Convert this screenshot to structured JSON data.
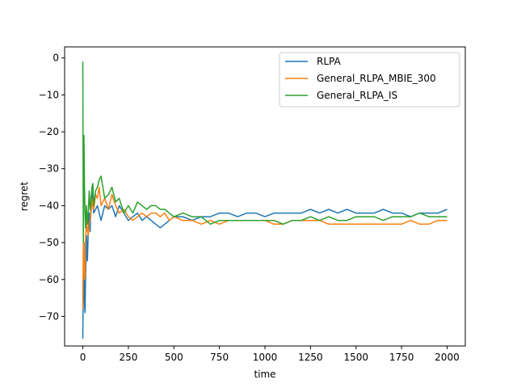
{
  "chart_data": {
    "type": "line",
    "title": "",
    "xlabel": "time",
    "ylabel": "regret",
    "xlim": [
      -100,
      2100
    ],
    "ylim": [
      -78,
      3
    ],
    "xticks": [
      0,
      250,
      500,
      750,
      1000,
      1250,
      1500,
      1750,
      2000
    ],
    "yticks": [
      0,
      -10,
      -20,
      -30,
      -40,
      -50,
      -60,
      -70
    ],
    "xtick_labels": [
      "0",
      "250",
      "500",
      "750",
      "1000",
      "1250",
      "1500",
      "1750",
      "2000"
    ],
    "ytick_labels": [
      "0",
      "−10",
      "−20",
      "−30",
      "−40",
      "−50",
      "−60",
      "−70"
    ],
    "grid": false,
    "legend_position": "top-right",
    "series": [
      {
        "name": "RLPA",
        "color": "#1f77b4",
        "x": [
          0,
          3,
          6,
          9,
          12,
          15,
          20,
          25,
          30,
          35,
          40,
          45,
          50,
          55,
          60,
          70,
          80,
          90,
          100,
          120,
          140,
          160,
          180,
          200,
          225,
          250,
          275,
          300,
          325,
          350,
          375,
          400,
          425,
          450,
          475,
          500,
          550,
          600,
          650,
          700,
          750,
          800,
          850,
          900,
          950,
          1000,
          1050,
          1100,
          1150,
          1200,
          1250,
          1300,
          1350,
          1400,
          1450,
          1500,
          1550,
          1600,
          1650,
          1700,
          1750,
          1800,
          1850,
          1900,
          1950,
          2000
        ],
        "y": [
          -76,
          -60,
          -50,
          -67,
          -69,
          -60,
          -48,
          -55,
          -47,
          -42,
          -47,
          -38,
          -36,
          -40,
          -42,
          -41,
          -40,
          -42,
          -44,
          -40,
          -41,
          -40,
          -43,
          -40,
          -42,
          -44,
          -43,
          -42,
          -44,
          -43,
          -44,
          -45,
          -46,
          -45,
          -44,
          -43,
          -43,
          -44,
          -43,
          -43,
          -42,
          -42,
          -43,
          -42,
          -42,
          -43,
          -42,
          -42,
          -42,
          -42,
          -41,
          -42,
          -41,
          -42,
          -41,
          -42,
          -42,
          -42,
          -41,
          -42,
          -42,
          -43,
          -42,
          -42,
          -42,
          -41
        ]
      },
      {
        "name": "General_RLPA_MBIE_300",
        "color": "#ff7f0e",
        "x": [
          0,
          3,
          6,
          9,
          12,
          15,
          20,
          25,
          30,
          35,
          40,
          45,
          50,
          55,
          60,
          70,
          80,
          90,
          100,
          120,
          140,
          160,
          180,
          200,
          225,
          250,
          275,
          300,
          325,
          350,
          375,
          400,
          425,
          450,
          475,
          500,
          550,
          600,
          650,
          700,
          750,
          800,
          850,
          900,
          950,
          1000,
          1050,
          1100,
          1150,
          1200,
          1250,
          1300,
          1350,
          1400,
          1450,
          1500,
          1550,
          1600,
          1650,
          1700,
          1750,
          1800,
          1850,
          1900,
          1950,
          2000
        ],
        "y": [
          -68,
          -50,
          -55,
          -60,
          -59,
          -49,
          -44,
          -47,
          -48,
          -45,
          -44,
          -42,
          -38,
          -40,
          -41,
          -37,
          -38,
          -35,
          -40,
          -38,
          -41,
          -37,
          -40,
          -42,
          -41,
          -43,
          -44,
          -43,
          -42,
          -43,
          -42,
          -42,
          -43,
          -42,
          -44,
          -43,
          -44,
          -44,
          -45,
          -44,
          -45,
          -44,
          -44,
          -44,
          -44,
          -44,
          -45,
          -45,
          -44,
          -44,
          -44,
          -44,
          -45,
          -45,
          -45,
          -45,
          -45,
          -45,
          -45,
          -45,
          -45,
          -44,
          -45,
          -45,
          -44,
          -44
        ]
      },
      {
        "name": "General_RLPA_IS",
        "color": "#2ca02c",
        "x": [
          0,
          3,
          6,
          9,
          12,
          15,
          20,
          25,
          30,
          35,
          40,
          45,
          50,
          55,
          60,
          70,
          80,
          90,
          100,
          120,
          140,
          160,
          180,
          200,
          225,
          250,
          275,
          300,
          325,
          350,
          375,
          400,
          425,
          450,
          475,
          500,
          550,
          600,
          650,
          700,
          750,
          800,
          850,
          900,
          950,
          1000,
          1050,
          1100,
          1150,
          1200,
          1250,
          1300,
          1350,
          1400,
          1450,
          1500,
          1550,
          1600,
          1650,
          1700,
          1750,
          1800,
          1850,
          1900,
          1950,
          2000
        ],
        "y": [
          -1,
          -50,
          -21,
          -35,
          -42,
          -46,
          -40,
          -45,
          -42,
          -36,
          -41,
          -39,
          -35,
          -34,
          -40,
          -36,
          -35,
          -33,
          -32,
          -38,
          -37,
          -35,
          -39,
          -38,
          -42,
          -40,
          -42,
          -39,
          -40,
          -41,
          -40,
          -40,
          -41,
          -41,
          -42,
          -43,
          -42,
          -43,
          -43,
          -45,
          -44,
          -44,
          -44,
          -44,
          -44,
          -44,
          -44,
          -45,
          -44,
          -44,
          -43,
          -44,
          -43,
          -44,
          -44,
          -43,
          -43,
          -43,
          -44,
          -43,
          -43,
          -43,
          -42,
          -43,
          -43,
          -43
        ]
      }
    ]
  }
}
